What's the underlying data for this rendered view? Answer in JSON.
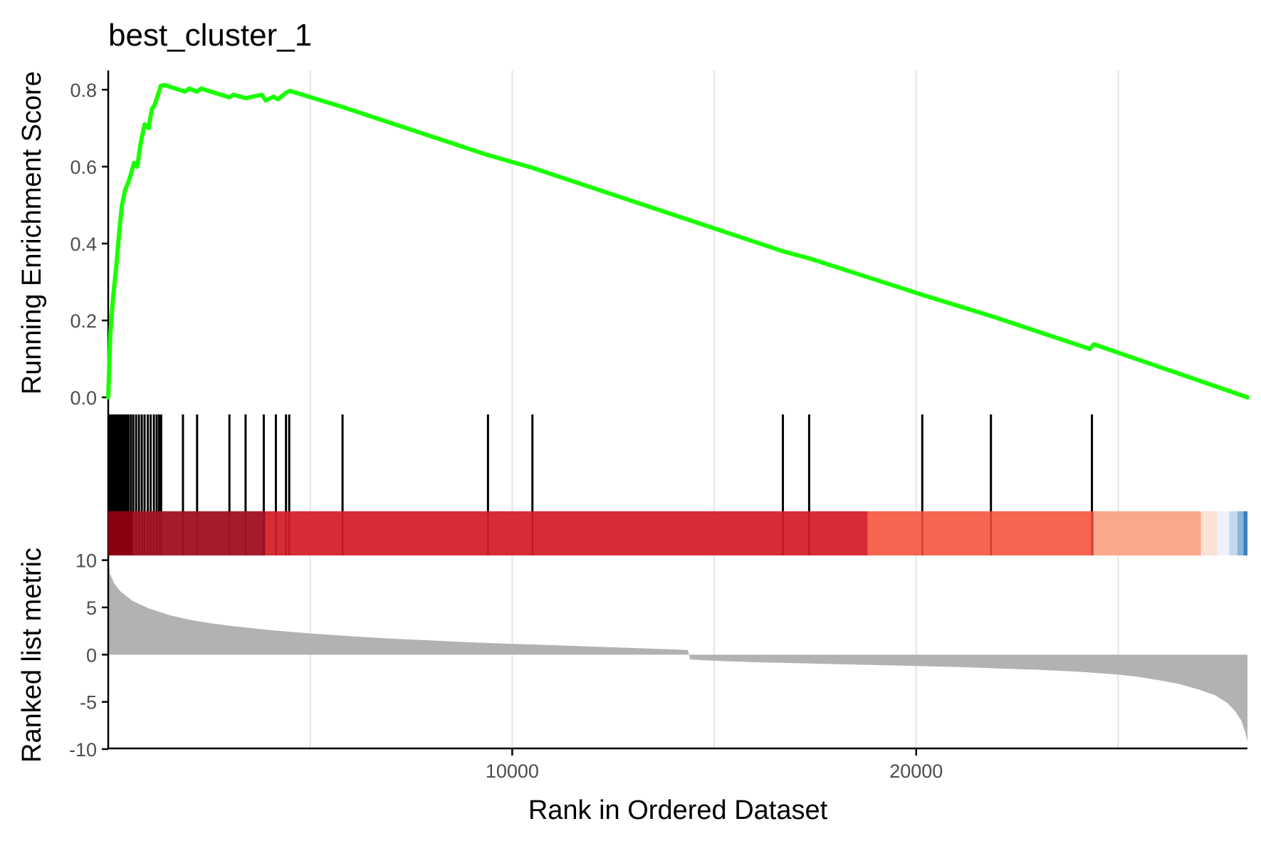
{
  "chart_data": {
    "type": "line",
    "title": "best_cluster_1",
    "xlabel": "Rank in Ordered Dataset",
    "xlim": [
      0,
      28200
    ],
    "x_ticks": [
      10000,
      20000
    ],
    "x_grid": [
      5000,
      10000,
      15000,
      20000,
      25000
    ],
    "grid": true,
    "colors": {
      "es_line": "#1aff00",
      "metric_fill": "#b2b2b2",
      "gridline": "#e5e5e5",
      "hit_line": "#000000",
      "axis": "#000000"
    },
    "panels": {
      "enrichment": {
        "ylabel": "Running Enrichment Score",
        "ylim": [
          0,
          0.85
        ],
        "y_ticks": [
          0.0,
          0.2,
          0.4,
          0.6,
          0.8
        ],
        "series": [
          {
            "x": [
              0,
              50,
              120,
              200,
              280,
              340,
              420,
              500,
              560,
              640,
              720,
              800,
              900,
              1000,
              1080,
              1150,
              1240,
              1300,
              1400,
              1900,
              2000,
              2200,
              2300,
              3000,
              3100,
              3400,
              3800,
              3900,
              4100,
              4200,
              4400,
              4500,
              5800,
              9400,
              10500,
              16700,
              17400,
              20200,
              21900,
              24300,
              24400,
              28200
            ],
            "y": [
              0.0,
              0.16,
              0.26,
              0.34,
              0.44,
              0.5,
              0.54,
              0.56,
              0.58,
              0.61,
              0.6,
              0.66,
              0.71,
              0.7,
              0.75,
              0.76,
              0.79,
              0.81,
              0.812,
              0.795,
              0.803,
              0.795,
              0.803,
              0.78,
              0.787,
              0.778,
              0.787,
              0.772,
              0.782,
              0.775,
              0.792,
              0.797,
              0.755,
              0.63,
              0.597,
              0.38,
              0.36,
              0.265,
              0.21,
              0.126,
              0.138,
              0.0
            ]
          }
        ]
      },
      "hits": {
        "gene_ranks": [
          10,
          40,
          70,
          100,
          130,
          160,
          190,
          220,
          250,
          290,
          330,
          370,
          410,
          450,
          500,
          560,
          620,
          690,
          760,
          830,
          900,
          980,
          1050,
          1130,
          1200,
          1260,
          1310,
          1850,
          2200,
          3000,
          3400,
          3850,
          4150,
          4400,
          4480,
          5800,
          9400,
          10500,
          16700,
          17350,
          20150,
          21850,
          24350
        ]
      },
      "color_bar": {
        "segments": [
          {
            "from": 0,
            "to": 600,
            "color": "#8b0012"
          },
          {
            "from": 600,
            "to": 3900,
            "color": "#a51b2c"
          },
          {
            "from": 3900,
            "to": 18800,
            "color": "#d72c36"
          },
          {
            "from": 18800,
            "to": 24400,
            "color": "#f7644f"
          },
          {
            "from": 24400,
            "to": 27050,
            "color": "#f9a98b"
          },
          {
            "from": 27050,
            "to": 27450,
            "color": "#fde0d6"
          },
          {
            "from": 27450,
            "to": 27750,
            "color": "#eef3fb"
          },
          {
            "from": 27750,
            "to": 27950,
            "color": "#c4d9ec"
          },
          {
            "from": 27950,
            "to": 28100,
            "color": "#86b6d9"
          },
          {
            "from": 28100,
            "to": 28200,
            "color": "#3c7fb8"
          }
        ]
      },
      "metric": {
        "ylabel": "Ranked list metric",
        "ylim": [
          -10,
          10.5
        ],
        "y_ticks": [
          10,
          5,
          0,
          -5,
          -10
        ],
        "y_tick_labels": [
          "10",
          "5",
          "0",
          "-5",
          "-10"
        ],
        "x": [
          0,
          40,
          150,
          300,
          600,
          1000,
          1500,
          2000,
          2500,
          3000,
          4000,
          5000,
          6000,
          7000,
          8000,
          9000,
          10000,
          11000,
          12000,
          13000,
          14000,
          14350,
          14400,
          15000,
          16000,
          17000,
          18000,
          19000,
          20000,
          21000,
          22000,
          23000,
          24000,
          25000,
          25500,
          26000,
          26500,
          27000,
          27400,
          27700,
          27900,
          28050,
          28150,
          28200
        ],
        "values": [
          10.5,
          8.6,
          7.5,
          6.7,
          5.7,
          4.9,
          4.2,
          3.7,
          3.35,
          3.05,
          2.6,
          2.25,
          1.95,
          1.7,
          1.5,
          1.3,
          1.15,
          1.0,
          0.85,
          0.7,
          0.55,
          0.5,
          -0.5,
          -0.65,
          -0.8,
          -0.9,
          -1.0,
          -1.1,
          -1.2,
          -1.3,
          -1.45,
          -1.6,
          -1.8,
          -2.1,
          -2.35,
          -2.7,
          -3.1,
          -3.7,
          -4.3,
          -5.1,
          -6.0,
          -7.0,
          -8.3,
          -9.2
        ]
      }
    }
  }
}
